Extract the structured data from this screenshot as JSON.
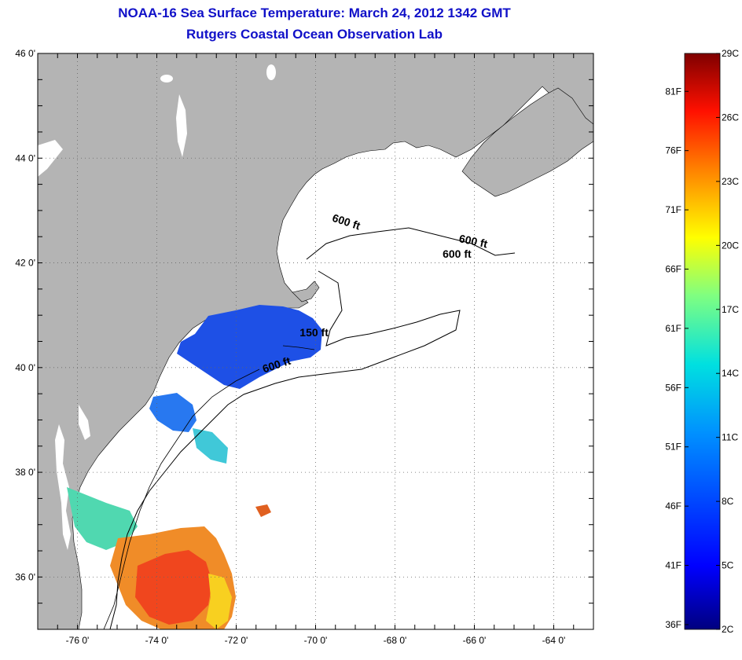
{
  "title": "NOAA-16 Sea Surface Temperature:  March 24, 2012 1342 GMT",
  "subtitle": "Rutgers Coastal Ocean Observation Lab",
  "map": {
    "lon_range": [
      -77.0,
      -63.0
    ],
    "lat_range": [
      35.0,
      46.0
    ],
    "lat_labels": [
      "46 0'",
      "44 0'",
      "42 0'",
      "40 0'",
      "38 0'",
      "36 0'"
    ],
    "lat_values": [
      46,
      44,
      42,
      40,
      38,
      36
    ],
    "lon_labels": [
      "-76 0'",
      "-74 0'",
      "-72 0'",
      "-70 0'",
      "-68 0'",
      "-66 0'",
      "-64 0'"
    ],
    "lon_values": [
      -76,
      -74,
      -72,
      -70,
      -68,
      -66,
      -64
    ],
    "land_color": "#b4b4b4",
    "grid": "dotted",
    "contour_labels": [
      {
        "text": "600 ft",
        "lon": -69.6,
        "lat": 42.8
      },
      {
        "text": "600 ft",
        "lon": -66.4,
        "lat": 42.4
      },
      {
        "text": "600 ft",
        "lon": -66.8,
        "lat": 42.1
      },
      {
        "text": "150 ft",
        "lon": -70.4,
        "lat": 40.6
      },
      {
        "text": "600 ft",
        "lon": -71.3,
        "lat": 39.9
      }
    ]
  },
  "colorbar": {
    "celsius_labels": [
      "29C",
      "26C",
      "23C",
      "20C",
      "17C",
      "14C",
      "11C",
      "8C",
      "5C",
      "2C"
    ],
    "celsius_values": [
      29,
      26,
      23,
      20,
      17,
      14,
      11,
      8,
      5,
      2
    ],
    "fahrenheit_labels": [
      "81F",
      "76F",
      "71F",
      "66F",
      "61F",
      "56F",
      "51F",
      "46F",
      "41F",
      "36F"
    ],
    "fahrenheit_values": [
      81,
      76,
      71,
      66,
      61,
      56,
      51,
      46,
      41,
      36
    ],
    "range_c": [
      2,
      29
    ],
    "colors": [
      "#00007f",
      "#0000ff",
      "#0080ff",
      "#00ffff",
      "#80ff80",
      "#ffff00",
      "#ff8000",
      "#ff0000",
      "#7f0000"
    ]
  }
}
